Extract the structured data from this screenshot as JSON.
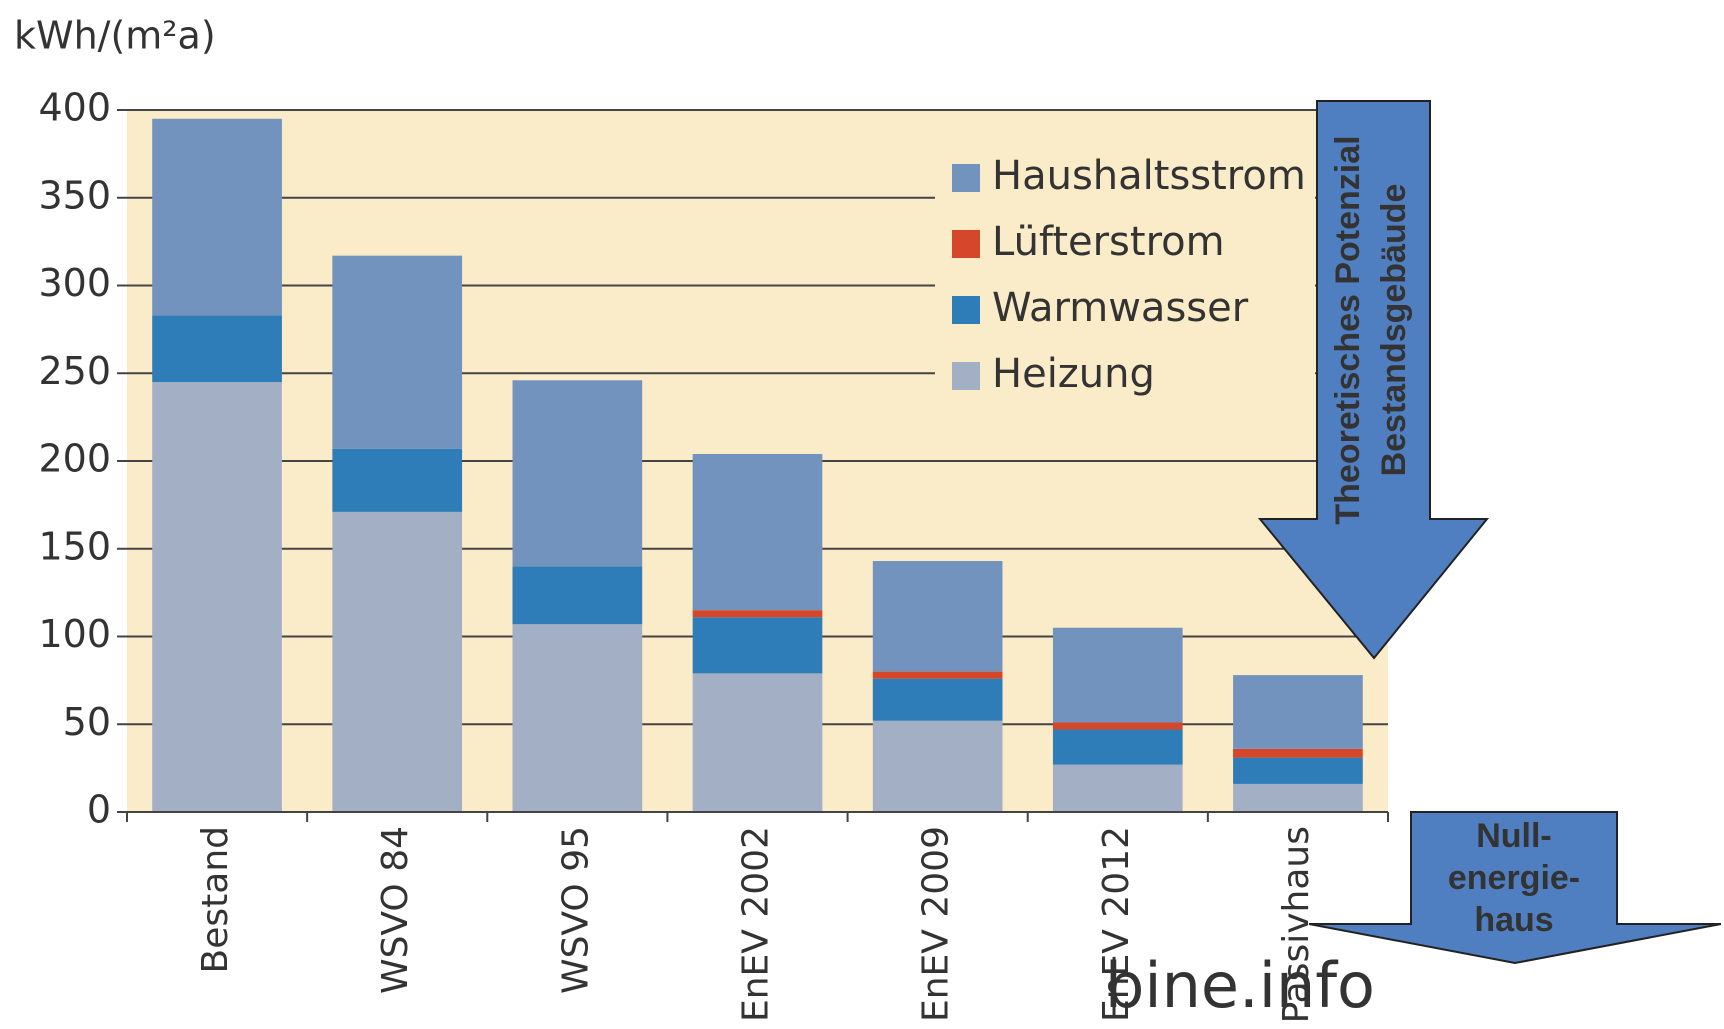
{
  "chart_data": {
    "type": "bar",
    "stacked": true,
    "y_label": "kWh/(m²a)",
    "categories": [
      "Bestand",
      "WSVO 84",
      "WSVO 95",
      "EnEV 2002",
      "EnEV 2009",
      "EnEV 2012",
      "Passivhaus"
    ],
    "series": [
      {
        "name": "Heizung",
        "color": "#a3afc4",
        "values": [
          245,
          171,
          107,
          79,
          52,
          27,
          16
        ]
      },
      {
        "name": "Warmwasser",
        "color": "#2e7cb8",
        "values": [
          38,
          36,
          33,
          32,
          24,
          20,
          15
        ]
      },
      {
        "name": "Lüfterstrom",
        "color": "#d5472a",
        "values": [
          0,
          0,
          0,
          4,
          4,
          4,
          5
        ]
      },
      {
        "name": "Haushaltsstrom",
        "color": "#7393bf",
        "values": [
          112,
          110,
          106,
          89,
          63,
          54,
          42
        ]
      }
    ],
    "ylim": [
      0,
      400
    ],
    "yticks": [
      0,
      50,
      100,
      150,
      200,
      250,
      300,
      350,
      400
    ],
    "grid": true,
    "legend": "upper right",
    "annotations": [
      {
        "lines": [
          "Theoretisches Potenzial",
          "Bestandsgebäude"
        ]
      },
      {
        "lines": [
          "Null-",
          "energie-",
          "haus"
        ]
      }
    ],
    "watermark": "bine.info"
  }
}
